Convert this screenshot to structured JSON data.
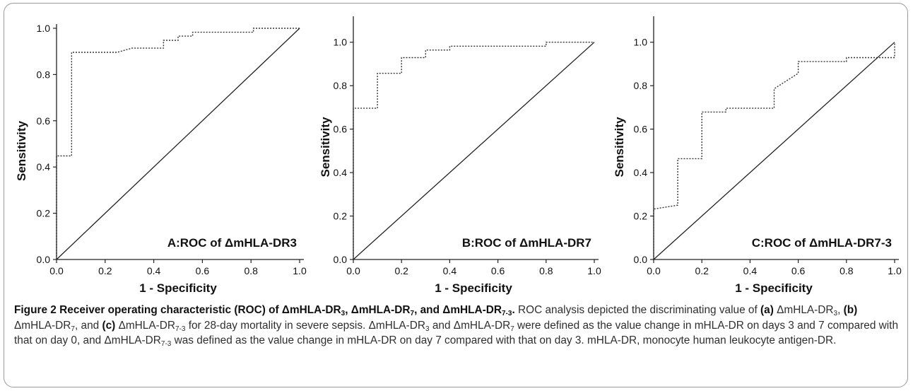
{
  "charts": [
    {
      "panel_id": "a",
      "ylabel": "Sensitivity",
      "xlabel": "1 - Specificity",
      "annotation": "A:ROC of ΔmHLA-DR3",
      "yticks": [
        "0.0",
        "0.2",
        "0.4",
        "0.6",
        "0.8",
        "1.0"
      ],
      "xticks": [
        "0.0",
        "0.2",
        "0.4",
        "0.6",
        "0.8",
        "1.0"
      ]
    },
    {
      "panel_id": "b",
      "ylabel": "Sensitivity",
      "xlabel": "1 - Specificity",
      "annotation": "B:ROC of ΔmHLA-DR7",
      "yticks": [
        "0.0",
        "0.2",
        "0.4",
        "0.6",
        "0.8",
        "1.0"
      ],
      "xticks": [
        "0.0",
        "0.2",
        "0.4",
        "0.6",
        "0.8",
        "1.0"
      ]
    },
    {
      "panel_id": "c",
      "ylabel": "Sensitivity",
      "xlabel": "1 - Specificity",
      "annotation": "C:ROC of ΔmHLA-DR7-3",
      "yticks": [
        "0.0",
        "0.2",
        "0.4",
        "0.6",
        "0.8",
        "1.0"
      ],
      "xticks": [
        "0.0",
        "0.2",
        "0.4",
        "0.6",
        "0.8",
        "1.0"
      ]
    }
  ],
  "chart_data": [
    {
      "type": "line",
      "title": "",
      "xlabel": "1 - Specificity",
      "ylabel": "Sensitivity",
      "xlim": [
        0,
        1
      ],
      "ylim": [
        0,
        1
      ],
      "grid": false,
      "series": [
        {
          "style": "dotted-step",
          "x": [
            0,
            0,
            0.062,
            0.062,
            0.25,
            0.31,
            0.31,
            0.44,
            0.44,
            0.5,
            0.5,
            0.56,
            0.56,
            0.81,
            0.81,
            1.0
          ],
          "y": [
            0,
            0.448,
            0.448,
            0.896,
            0.896,
            0.914,
            0.914,
            0.914,
            0.948,
            0.948,
            0.966,
            0.966,
            0.983,
            0.983,
            1.0,
            1.0
          ]
        },
        {
          "style": "diagonal-reference",
          "x": [
            0,
            1
          ],
          "y": [
            0,
            1
          ]
        }
      ]
    },
    {
      "type": "line",
      "title": "",
      "xlabel": "1 - Specificity",
      "ylabel": "Sensitivity",
      "xlim": [
        0,
        1
      ],
      "ylim": [
        0,
        1
      ],
      "grid": false,
      "series": [
        {
          "style": "dotted-step",
          "x": [
            0,
            0,
            0.1,
            0.1,
            0.2,
            0.2,
            0.3,
            0.3,
            0.4,
            0.4,
            0.8,
            0.8,
            1.0
          ],
          "y": [
            0,
            0.696,
            0.696,
            0.857,
            0.857,
            0.929,
            0.929,
            0.964,
            0.964,
            0.982,
            0.982,
            1.0,
            1.0
          ]
        },
        {
          "style": "diagonal-reference",
          "x": [
            0,
            1
          ],
          "y": [
            0,
            1
          ]
        }
      ]
    },
    {
      "type": "line",
      "title": "",
      "xlabel": "1 - Specificity",
      "ylabel": "Sensitivity",
      "xlim": [
        0,
        1
      ],
      "ylim": [
        0,
        1
      ],
      "grid": false,
      "series": [
        {
          "style": "dotted-step",
          "x": [
            0,
            0,
            0.1,
            0.1,
            0.2,
            0.2,
            0.3,
            0.3,
            0.5,
            0.5,
            0.6,
            0.6,
            0.8,
            0.8,
            1.0,
            1.0
          ],
          "y": [
            0,
            0.232,
            0.25,
            0.464,
            0.464,
            0.679,
            0.679,
            0.696,
            0.696,
            0.786,
            0.857,
            0.911,
            0.911,
            0.929,
            0.929,
            1.0
          ]
        },
        {
          "style": "diagonal-reference",
          "x": [
            0,
            1
          ],
          "y": [
            0,
            1
          ]
        }
      ]
    }
  ],
  "caption": {
    "label": "Figure 2",
    "bold_parts": [
      "Receiver operating characteristic (ROC) of ΔmHLA-DR",
      "3",
      ", ΔmHLA-DR",
      "7",
      ", and ΔmHLA-DR",
      "7-3",
      "."
    ],
    "body_parts": [
      "ROC analysis depicted the discriminating value of ",
      "(a)",
      " ΔmHLA-DR",
      "3",
      ", ",
      "(b)",
      " ΔmHLA-DR",
      "7",
      ", and ",
      "(c)",
      " ΔmHLA-DR",
      "7-3",
      " for 28-day mortality in severe sepsis. ΔmHLA-DR",
      "3",
      " and ΔmHLA-DR",
      "7",
      " were defined as the value change in mHLA-DR on days 3 and 7 compared with that on day 0, and ΔmHLA-DR",
      "7-3",
      " was defined as the value change in mHLA-DR on day 7 compared with that on day 3. mHLA-DR, monocyte human leukocyte antigen-DR."
    ]
  }
}
